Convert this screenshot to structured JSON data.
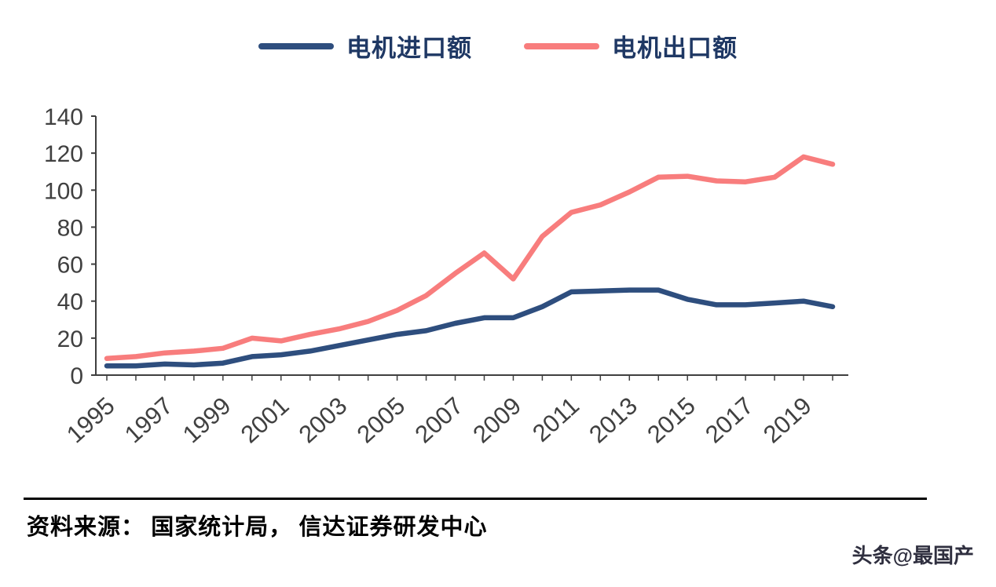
{
  "page": {
    "background": "#ffffff"
  },
  "chart_data": {
    "type": "line",
    "x": [
      1995,
      1996,
      1997,
      1998,
      1999,
      2000,
      2001,
      2002,
      2003,
      2004,
      2005,
      2006,
      2007,
      2008,
      2009,
      2010,
      2011,
      2012,
      2013,
      2014,
      2015,
      2016,
      2017,
      2018,
      2019,
      2020
    ],
    "series": [
      {
        "name": "电机进口额",
        "color": "#2e4e7e",
        "values": [
          5,
          5,
          6,
          5.5,
          6.5,
          10,
          11,
          13,
          16,
          19,
          22,
          24,
          28,
          31,
          31,
          37,
          45,
          45.5,
          46,
          46,
          41,
          38,
          38,
          39,
          40,
          37
        ]
      },
      {
        "name": "电机出口额",
        "color": "#f87d7d",
        "values": [
          9,
          10,
          12,
          13,
          14.5,
          20,
          18.5,
          22,
          25,
          29,
          35,
          43,
          55,
          66,
          52,
          75,
          88,
          92,
          99,
          107,
          107.5,
          105,
          104.5,
          107,
          118,
          114
        ]
      }
    ],
    "title": "",
    "xlabel": "",
    "ylabel": "",
    "ylim": [
      0,
      140
    ],
    "ytick_step": 20,
    "ytick_labels": [
      "0",
      "20",
      "40",
      "60",
      "80",
      "100",
      "120",
      "140"
    ],
    "xtick_labels": [
      "1995",
      "1997",
      "1999",
      "2001",
      "2003",
      "2005",
      "2007",
      "2009",
      "2011",
      "2013",
      "2015",
      "2017",
      "2019"
    ],
    "grid": false,
    "legend_position": "top",
    "axis_color": "#3f3f3f",
    "tick_label_color": "#404040",
    "legend_text_color": "#1f3864",
    "line_width": 6.5
  },
  "footer": {
    "source": "资料来源： 国家统计局， 信达证券研发中心",
    "watermark": "头条@最国产"
  }
}
